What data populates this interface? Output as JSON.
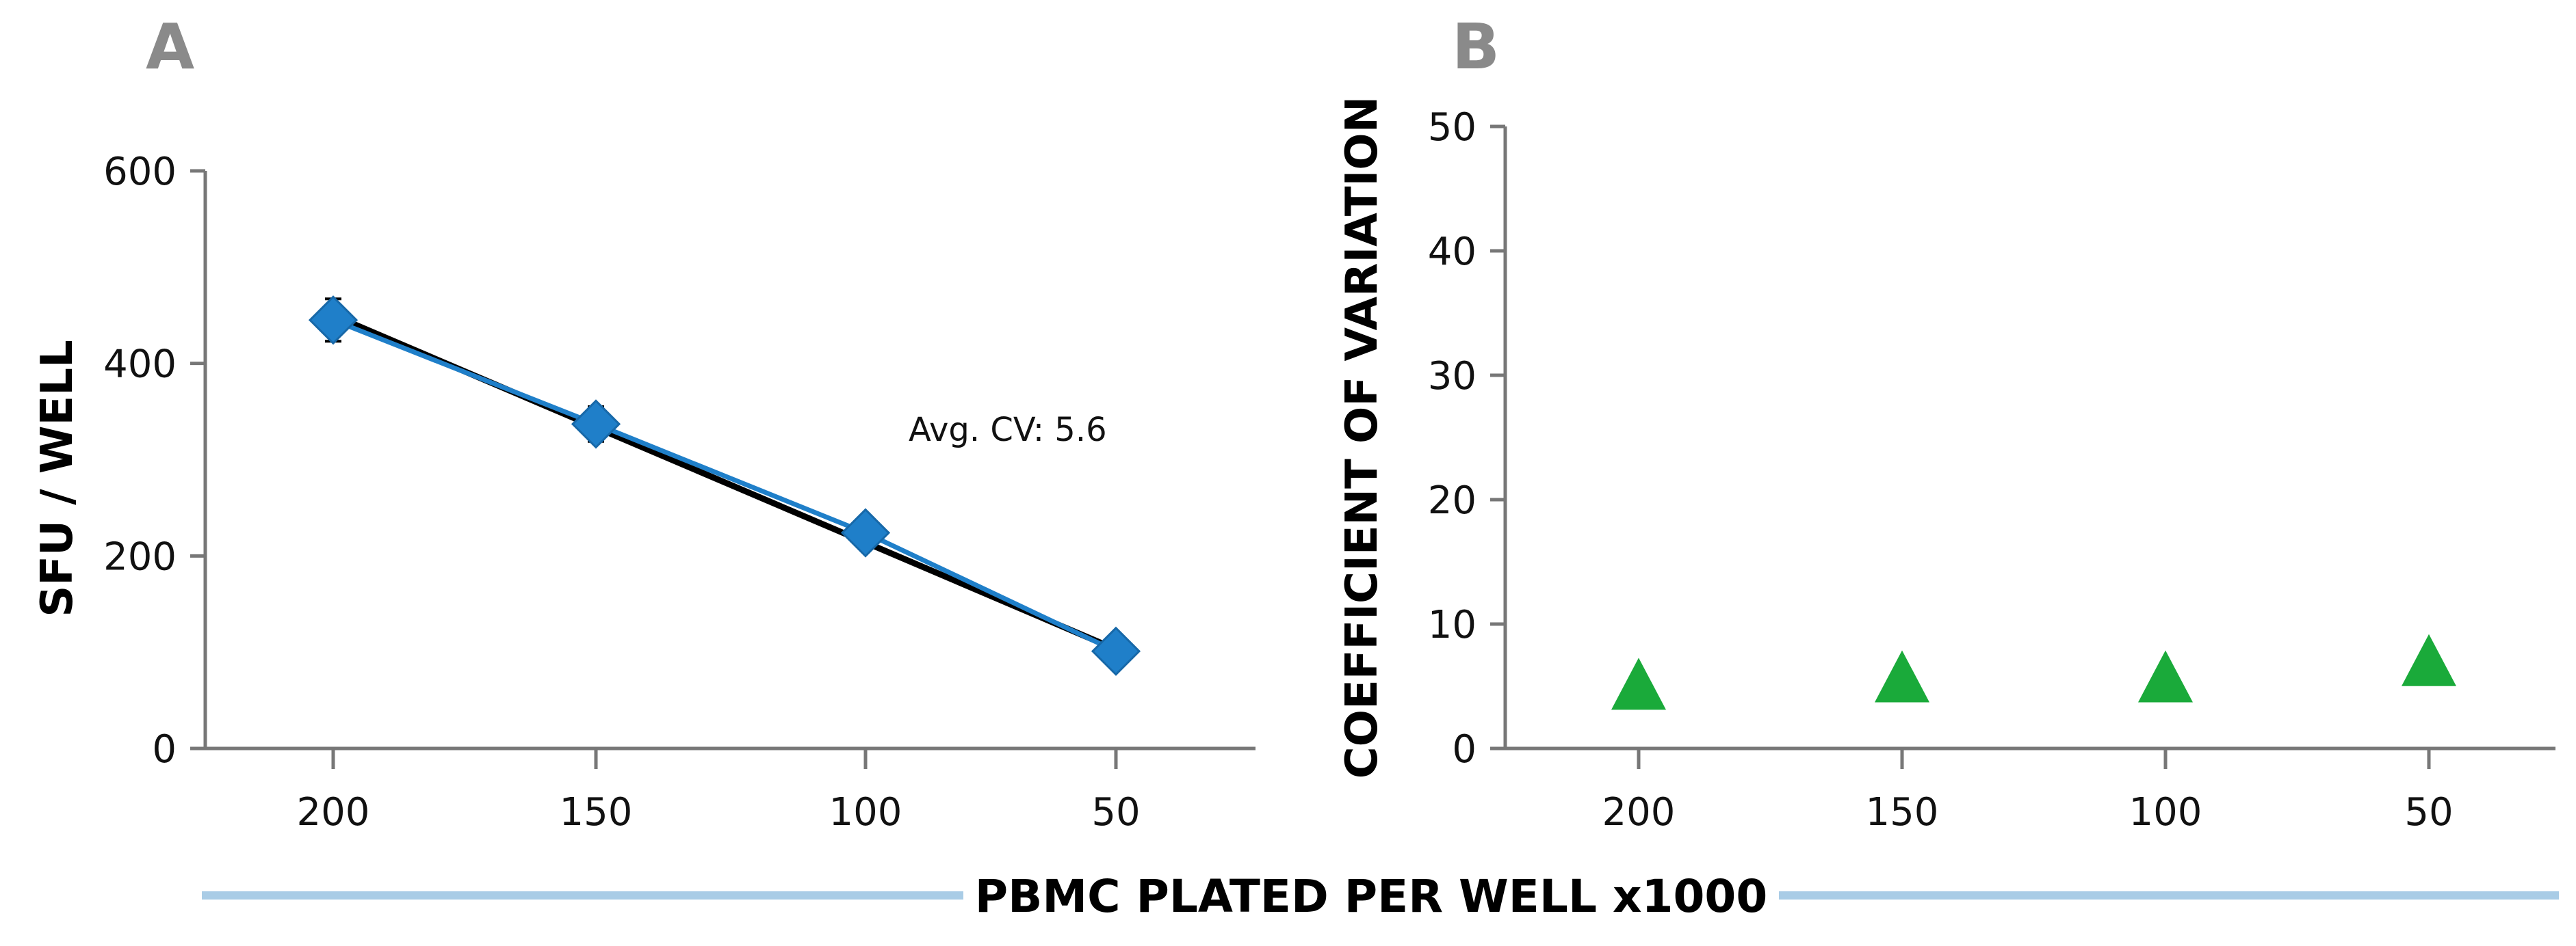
{
  "shared_xlabel": "PBMC PLATED PER WELL x1000",
  "colors": {
    "panel_letter": "#8a8a8a",
    "axis": "#777777",
    "series_a": "#1f7fc9",
    "trend_line": "#000000",
    "series_b": "#1aaa3a",
    "shared_bar": "#a9cce6"
  },
  "chart_data": [
    {
      "panel": "A",
      "type": "line",
      "categories": [
        "200",
        "150",
        "100",
        "50"
      ],
      "x": [
        200,
        150,
        100,
        50
      ],
      "series": [
        {
          "name": "SFU / WELL",
          "values": [
            445,
            337,
            224,
            101
          ],
          "errors": [
            22,
            18,
            10,
            8
          ]
        }
      ],
      "trend": {
        "from": 450,
        "to": 103
      },
      "ylabel": "SFU / WELL",
      "xlabel": "PBMC PLATED PER WELL x1000",
      "ylim": [
        0,
        600
      ],
      "yticks": [
        0,
        200,
        400,
        600
      ],
      "annotation": "Avg. CV: 5.6",
      "grid": false
    },
    {
      "panel": "B",
      "type": "scatter",
      "categories": [
        "200",
        "150",
        "100",
        "50"
      ],
      "x": [
        200,
        150,
        100,
        50
      ],
      "series": [
        {
          "name": "COEFFICIENT OF VARIATION",
          "values": [
            5.2,
            5.8,
            5.8,
            7.1
          ]
        }
      ],
      "ylabel": "COEFFICIENT OF VARIATION",
      "xlabel": "PBMC PLATED PER WELL x1000",
      "ylim": [
        0,
        50
      ],
      "yticks": [
        0,
        10,
        20,
        30,
        40,
        50
      ],
      "grid": false
    }
  ]
}
